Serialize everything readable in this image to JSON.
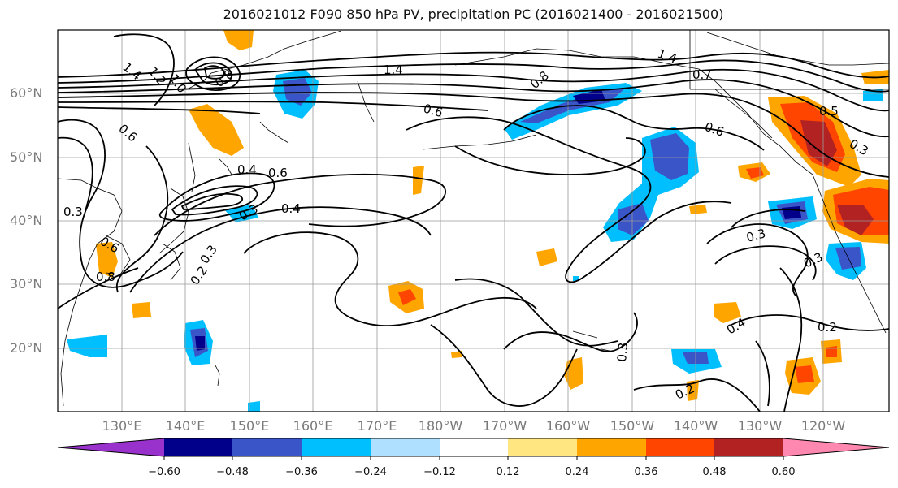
{
  "title": "2016021012 F090 850 hPa PV, precipitation PC (2016021400 - 2016021500)",
  "map": {
    "lat_ticks": [
      "60°N",
      "50°N",
      "40°N",
      "30°N",
      "20°N"
    ],
    "lon_ticks": [
      "130°E",
      "140°E",
      "150°E",
      "160°E",
      "170°E",
      "180°W",
      "170°W",
      "160°W",
      "150°W",
      "140°W",
      "130°W",
      "120°W"
    ],
    "contour_labels": [
      "1.4",
      "1.2",
      "1.0",
      "0.8",
      "0.6",
      "1.4",
      "0.7",
      "0.8",
      "0.6",
      "1.4",
      "0.6",
      "0.5",
      "0.3",
      "0.4",
      "0.6",
      "0.4",
      "0.3",
      "0.3",
      "0.6",
      "0.8",
      "0.3",
      "0.2",
      "0.3",
      "0.3",
      "0.4",
      "0.2",
      "0.3",
      "0.2"
    ]
  },
  "colorbar": {
    "tick_labels": [
      "−0.60",
      "−0.48",
      "−0.36",
      "−0.24",
      "−0.12",
      "0.12",
      "0.24",
      "0.36",
      "0.48",
      "0.60"
    ],
    "colors": [
      "#9932cc",
      "#00008b",
      "#3a55c8",
      "#00bfff",
      "#b0e0ff",
      "#ffffff",
      "#ffe680",
      "#ffa500",
      "#ff4500",
      "#b22222",
      "#ff88b0"
    ]
  }
}
